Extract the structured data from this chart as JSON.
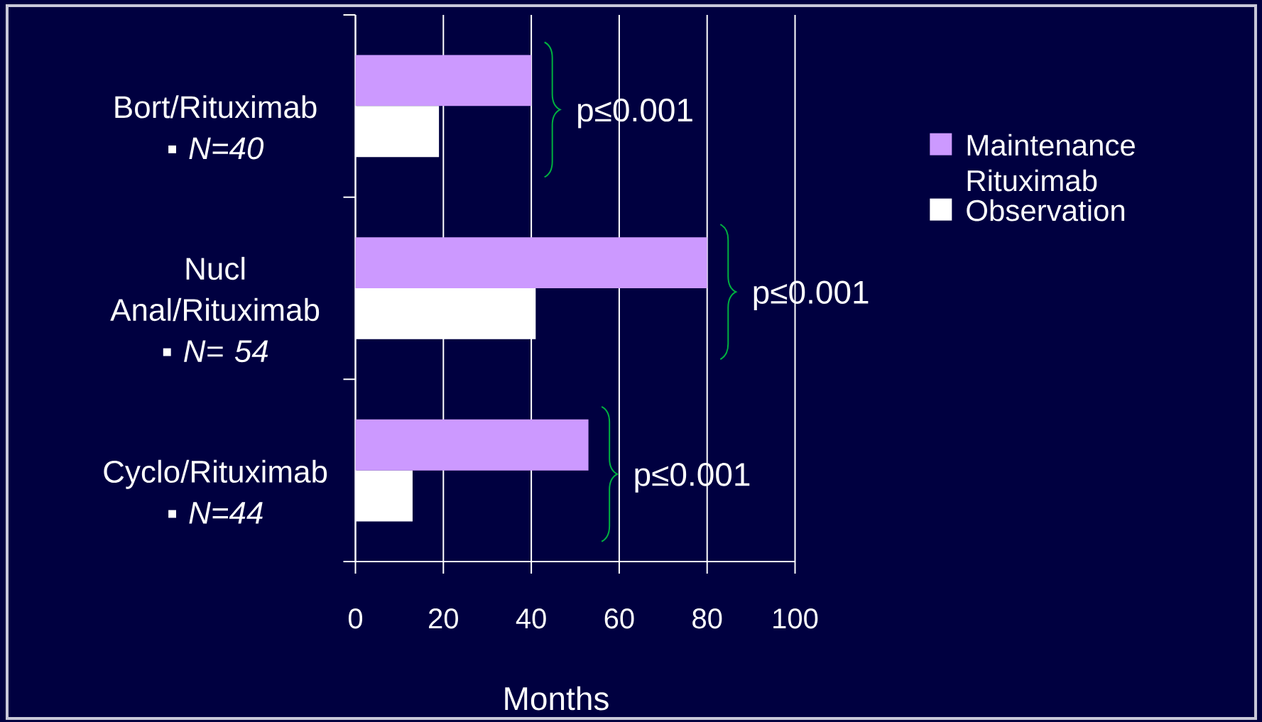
{
  "chart_data": {
    "type": "bar",
    "orientation": "horizontal",
    "categories": [
      "Bort/Rituximab ▪ *N=40*",
      "Nucl Anal/Rituximab ▪ *N= 54*",
      "Cyclo/Rituximab ▪ *N=44*"
    ],
    "series": [
      {
        "name": "Maintenance Rituximab",
        "color": "#cc99ff",
        "values": [
          40,
          80,
          53
        ]
      },
      {
        "name": "Observation",
        "color": "#ffffff",
        "values": [
          19,
          41,
          13
        ]
      }
    ],
    "xlabel": "Months",
    "xlim": [
      0,
      100
    ],
    "xticks": [
      0,
      20,
      40,
      60,
      80,
      100
    ],
    "grid": "x",
    "legend": "right",
    "annotations": [
      "p≤0.001",
      "p≤0.001",
      "p≤0.001"
    ]
  }
}
